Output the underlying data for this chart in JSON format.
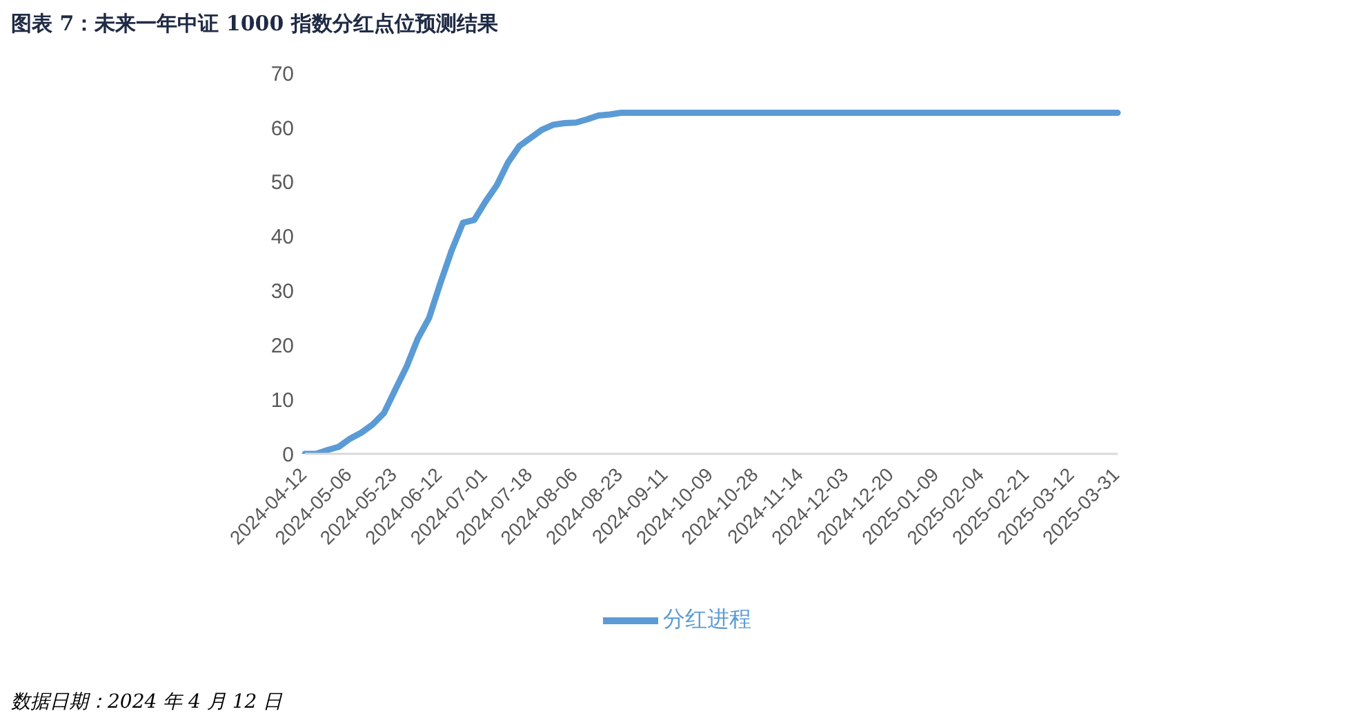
{
  "chart_data": {
    "type": "line",
    "title": "图表 7：未来一年中证 1000 指数分红点位预测结果",
    "categories": [
      "2024-04-12",
      null,
      null,
      null,
      "2024-05-06",
      null,
      null,
      null,
      "2024-05-23",
      null,
      null,
      null,
      "2024-06-12",
      null,
      null,
      null,
      "2024-07-01",
      null,
      null,
      null,
      "2024-07-18",
      null,
      null,
      null,
      "2024-08-06",
      null,
      null,
      null,
      "2024-08-23",
      null,
      null,
      null,
      "2024-09-11",
      null,
      null,
      null,
      "2024-10-09",
      null,
      null,
      null,
      "2024-10-28",
      null,
      null,
      null,
      "2024-11-14",
      null,
      null,
      null,
      "2024-12-03",
      null,
      null,
      null,
      "2024-12-20",
      null,
      null,
      null,
      "2025-01-09",
      null,
      null,
      null,
      "2025-02-04",
      null,
      null,
      null,
      "2025-02-21",
      null,
      null,
      null,
      "2025-03-12",
      null,
      null,
      null,
      "2025-03-31"
    ],
    "series": [
      {
        "name": "分红进程",
        "color": "#5b9bd5",
        "values": [
          0,
          0,
          0.7,
          1.3,
          2.8,
          3.9,
          5.4,
          7.5,
          11.8,
          16,
          21.2,
          25,
          31.4,
          37.4,
          42.5,
          43,
          46.4,
          49.4,
          53.6,
          56.6,
          58.1,
          59.6,
          60.5,
          60.8,
          60.9,
          61.5,
          62.2,
          62.4,
          62.7,
          62.7,
          62.7,
          62.7,
          62.7,
          62.7,
          62.7,
          62.7,
          62.7,
          62.7,
          62.7,
          62.7,
          62.7,
          62.7,
          62.7,
          62.7,
          62.7,
          62.7,
          62.7,
          62.7,
          62.7,
          62.7,
          62.7,
          62.7,
          62.7,
          62.7,
          62.7,
          62.7,
          62.7,
          62.7,
          62.7,
          62.7,
          62.7,
          62.7,
          62.7,
          62.7,
          62.7,
          62.7,
          62.7,
          62.7,
          62.7,
          62.7,
          62.7,
          62.7,
          62.7
        ]
      }
    ],
    "ylim": [
      0,
      70
    ],
    "yticks": [
      0,
      10,
      20,
      30,
      40,
      50,
      60,
      70
    ],
    "grid": false,
    "legend": "bottom",
    "marker": "none",
    "line_style": "solid",
    "annotations": [
      "数据日期：2024 年 4 月 12 日"
    ]
  }
}
